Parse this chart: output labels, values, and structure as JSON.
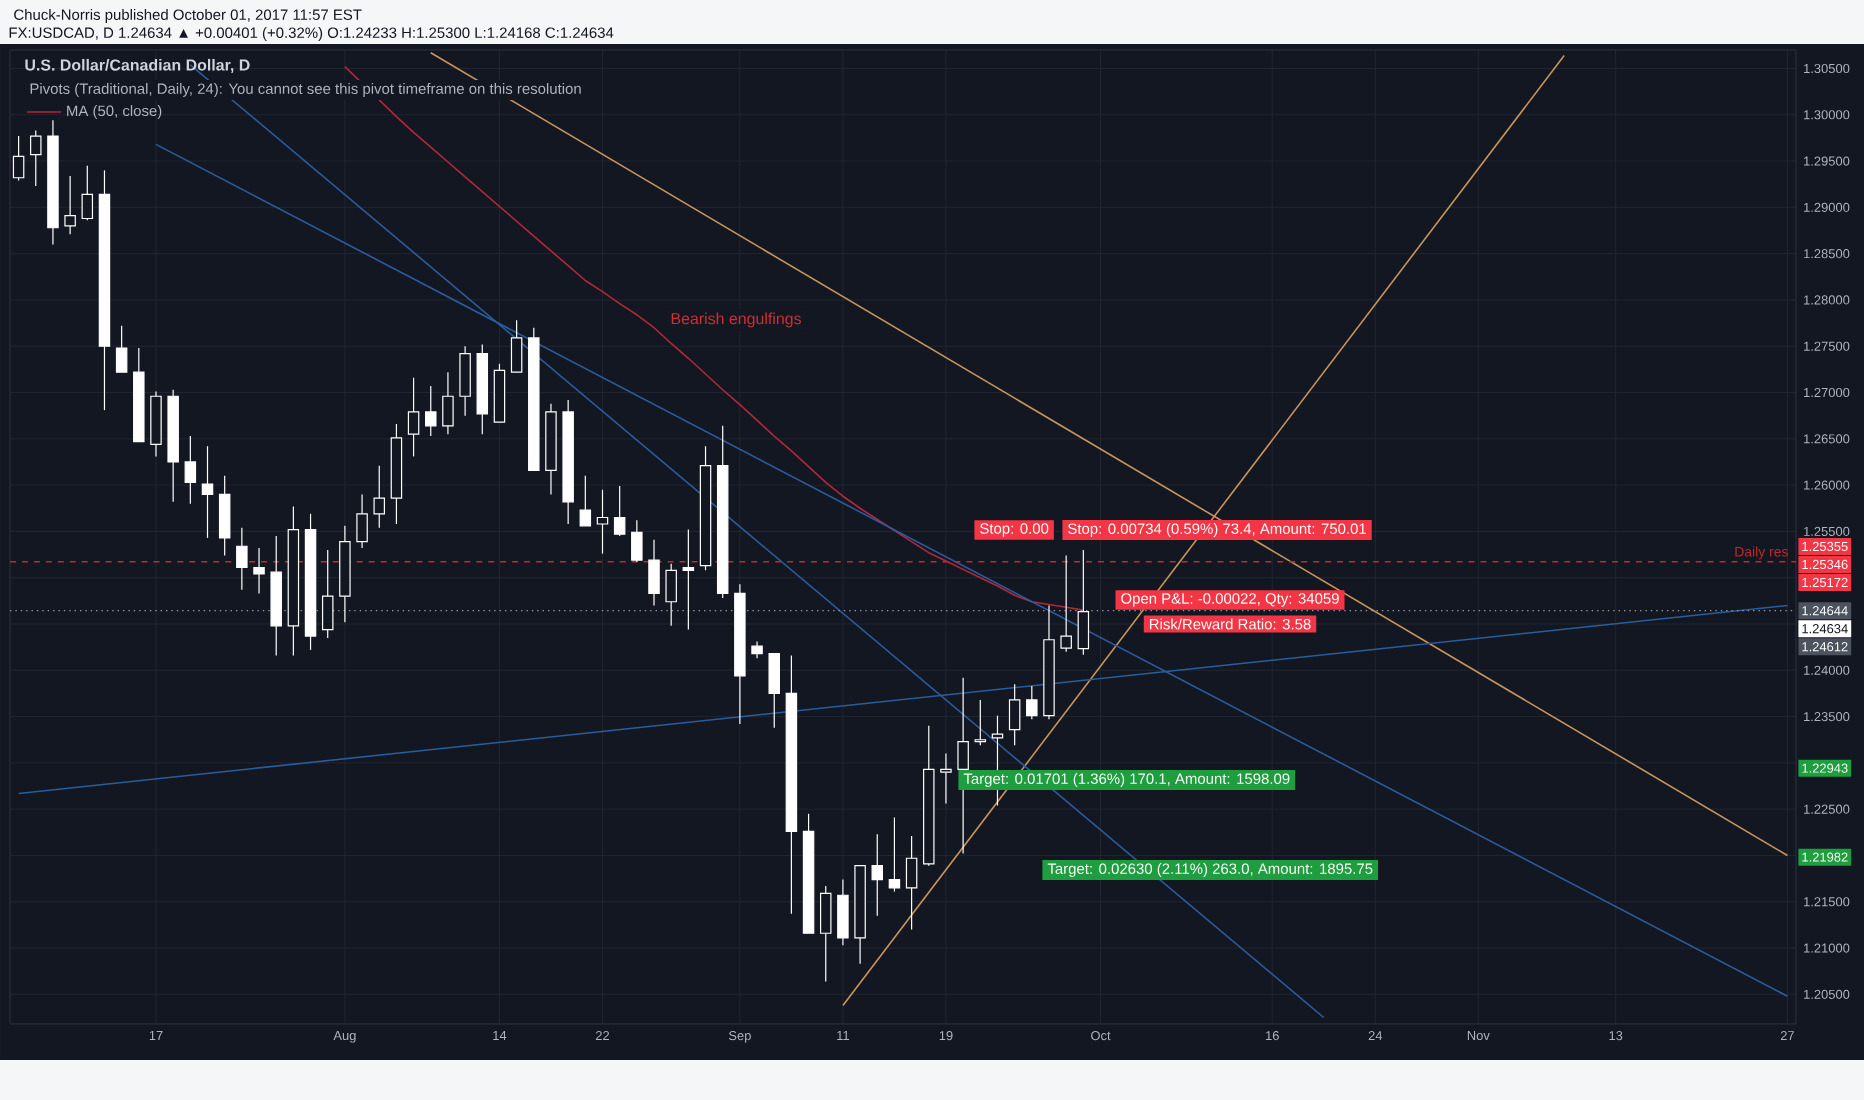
{
  "chart_data": {
    "type": "candlestick",
    "title": "U.S. Dollar/Canadian Dollar, D",
    "subtitle": "FX:USDCAD, D 1.24634 ▲ +0.00401 (+0.32%) O:1.24233 H:1.25300 L:1.24168 C:1.24634",
    "categories": [
      null,
      null,
      null,
      null,
      null,
      null,
      null,
      null,
      "17",
      null,
      null,
      null,
      null,
      null,
      null,
      null,
      null,
      null,
      null,
      "Aug",
      null,
      null,
      null,
      null,
      null,
      null,
      null,
      null,
      "14",
      null,
      null,
      null,
      null,
      null,
      "22",
      null,
      null,
      null,
      null,
      null,
      null,
      null,
      "Sep",
      null,
      null,
      null,
      null,
      null,
      "11",
      null,
      null,
      null,
      null,
      null,
      "19",
      null,
      null,
      null,
      null,
      null,
      null,
      null,
      null,
      "Oct",
      null,
      null,
      null,
      null,
      null,
      null,
      null,
      null,
      null,
      "16",
      null,
      null,
      null,
      null,
      null,
      "24",
      null,
      null,
      null,
      null,
      null,
      "Nov",
      null,
      null,
      null,
      null,
      null,
      null,
      null,
      "13",
      null,
      null,
      null,
      null,
      null,
      null,
      null,
      null,
      null,
      "27"
    ],
    "series": [
      {
        "color": "#ffffff",
        "ohlc": [
          [
            1.2932,
            1.2977,
            1.2929,
            1.2955
          ],
          [
            1.2957,
            1.2983,
            1.2923,
            1.2977
          ],
          [
            1.2977,
            1.2994,
            1.286,
            1.2878
          ],
          [
            1.288,
            1.2934,
            1.2871,
            1.2891
          ],
          [
            1.2888,
            1.2945,
            1.2886,
            1.2914
          ],
          [
            1.2914,
            1.294,
            1.2681,
            1.275
          ],
          [
            1.2748,
            1.2772,
            1.2722,
            1.2722
          ],
          [
            1.2722,
            1.2748,
            1.2647,
            1.2647
          ],
          [
            1.2644,
            1.2701,
            1.2631,
            1.2696
          ],
          [
            1.2696,
            1.2703,
            1.2582,
            1.2625
          ],
          [
            1.2625,
            1.2653,
            1.258,
            1.2603
          ],
          [
            1.2601,
            1.2642,
            1.2543,
            1.259
          ],
          [
            1.259,
            1.261,
            1.2524,
            1.2543
          ],
          [
            1.2534,
            1.2554,
            1.2487,
            1.2511
          ],
          [
            1.2511,
            1.2532,
            1.2483,
            1.2504
          ],
          [
            1.2506,
            1.2545,
            1.2416,
            1.2448
          ],
          [
            1.2448,
            1.2577,
            1.2416,
            1.2552
          ],
          [
            1.2552,
            1.2569,
            1.2422,
            1.2437
          ],
          [
            1.2444,
            1.253,
            1.2435,
            1.248
          ],
          [
            1.248,
            1.2556,
            1.2452,
            1.2539
          ],
          [
            1.2539,
            1.259,
            1.2532,
            1.2569
          ],
          [
            1.2569,
            1.2621,
            1.2554,
            1.2586
          ],
          [
            1.2586,
            1.2666,
            1.2558,
            1.2651
          ],
          [
            1.2655,
            1.2716,
            1.2631,
            1.2679
          ],
          [
            1.2679,
            1.2707,
            1.2653,
            1.2664
          ],
          [
            1.2664,
            1.2722,
            1.2655,
            1.2696
          ],
          [
            1.2696,
            1.275,
            1.2675,
            1.2742
          ],
          [
            1.2742,
            1.2752,
            1.2655,
            1.2677
          ],
          [
            1.2668,
            1.2731,
            1.2668,
            1.2724
          ],
          [
            1.2722,
            1.2778,
            1.2722,
            1.2759
          ],
          [
            1.2759,
            1.277,
            1.2616,
            1.2616
          ],
          [
            1.2616,
            1.2688,
            1.259,
            1.2679
          ],
          [
            1.2679,
            1.2692,
            1.2558,
            1.2582
          ],
          [
            1.2573,
            1.261,
            1.2556,
            1.2556
          ],
          [
            1.2558,
            1.2595,
            1.2526,
            1.2565
          ],
          [
            1.2565,
            1.2599,
            1.2545,
            1.2547
          ],
          [
            1.2549,
            1.2562,
            1.2517,
            1.2519
          ],
          [
            1.2519,
            1.2541,
            1.247,
            1.2483
          ],
          [
            1.2474,
            1.2515,
            1.2448,
            1.2508
          ],
          [
            1.2511,
            1.2552,
            1.2444,
            1.2508
          ],
          [
            1.2513,
            1.2642,
            1.2508,
            1.2621
          ],
          [
            1.2621,
            1.2664,
            1.2478,
            1.2483
          ],
          [
            1.2483,
            1.2493,
            1.2342,
            1.2394
          ],
          [
            1.2426,
            1.2431,
            1.2413,
            1.2418
          ],
          [
            1.2418,
            1.2418,
            1.2338,
            1.2375
          ],
          [
            1.2375,
            1.2416,
            1.2137,
            1.2226
          ],
          [
            1.2226,
            1.2245,
            1.2116,
            1.2116
          ],
          [
            1.2116,
            1.2167,
            1.2064,
            1.2159
          ],
          [
            1.2157,
            1.2174,
            1.2103,
            1.2111
          ],
          [
            1.2111,
            1.2189,
            1.2083,
            1.2189
          ],
          [
            1.2189,
            1.2223,
            1.2135,
            1.2174
          ],
          [
            1.2174,
            1.2241,
            1.2161,
            1.2165
          ],
          [
            1.2165,
            1.2221,
            1.212,
            1.2197
          ],
          [
            1.2191,
            1.234,
            1.2189,
            1.2293
          ],
          [
            1.229,
            1.231,
            1.2256,
            1.2293
          ],
          [
            1.2293,
            1.2392,
            1.2202,
            1.2323
          ],
          [
            1.2323,
            1.2368,
            1.2319,
            1.2325
          ],
          [
            1.2327,
            1.2351,
            1.2254,
            1.2331
          ],
          [
            1.2336,
            1.2385,
            1.2319,
            1.2368
          ],
          [
            1.2368,
            1.2383,
            1.2347,
            1.2351
          ],
          [
            1.2351,
            1.247,
            1.2347,
            1.2433
          ],
          [
            1.2424,
            1.2524,
            1.242,
            1.2437
          ],
          [
            1.24233,
            1.253,
            1.24168,
            1.24634
          ],
          null,
          null,
          null,
          null,
          null,
          null,
          null,
          null,
          null,
          null,
          null,
          null,
          null,
          null,
          null,
          null,
          null,
          null,
          null,
          null,
          null,
          null,
          null,
          null,
          null,
          null,
          null,
          null,
          null,
          null,
          null,
          null,
          null,
          null,
          null,
          null,
          null,
          null,
          null,
          null,
          null
        ]
      },
      {
        "type": "line",
        "name": "MA (50, close)",
        "color": "#b2283a",
        "values": [
          null,
          null,
          null,
          null,
          null,
          null,
          null,
          null,
          null,
          null,
          null,
          null,
          null,
          null,
          null,
          null,
          null,
          null,
          null,
          1.3052,
          1.3034,
          1.3016,
          1.2998,
          1.2981,
          1.2965,
          1.2949,
          1.2933,
          1.2917,
          1.2901,
          1.2885,
          1.2869,
          1.2853,
          1.2837,
          1.2821,
          1.2809,
          1.2796,
          1.2784,
          1.277,
          1.2753,
          1.2737,
          1.272,
          1.2703,
          1.2687,
          1.267,
          1.2653,
          1.2637,
          1.262,
          1.2603,
          1.2588,
          1.2575,
          1.2563,
          1.2551,
          1.2539,
          1.2527,
          1.2518,
          1.2509,
          1.25,
          1.2491,
          1.2481,
          1.2474,
          1.2471,
          1.2468,
          1.2465,
          null,
          null,
          null,
          null,
          null,
          null,
          null,
          null,
          null,
          null,
          null,
          null,
          null,
          null,
          null,
          null,
          null,
          null,
          null,
          null,
          null,
          null,
          null,
          null,
          null,
          null,
          null,
          null,
          null,
          null,
          null,
          null,
          null,
          null,
          null,
          null,
          null,
          null,
          null,
          null,
          null
        ]
      },
      {
        "type": "line",
        "color": "#c9955a",
        "values": [
          null,
          null,
          null,
          null,
          null,
          null,
          null,
          null,
          null,
          null,
          null,
          null,
          null,
          null,
          null,
          null,
          null,
          null,
          null,
          null,
          null,
          null,
          null,
          null,
          1.3067,
          null,
          null,
          null,
          null,
          null,
          null,
          null,
          null,
          null,
          null,
          null,
          null,
          null,
          null,
          null,
          null,
          null,
          null,
          null,
          null,
          null,
          null,
          null,
          null,
          null,
          null,
          null,
          null,
          null,
          null,
          null,
          null,
          null,
          null,
          null,
          null,
          null,
          null,
          null,
          null,
          null,
          null,
          null,
          null,
          null,
          null,
          null,
          null,
          null,
          null,
          null,
          null,
          null,
          null,
          null,
          null,
          null,
          null,
          null,
          null,
          null,
          null,
          null,
          null,
          null,
          null,
          null,
          null,
          null,
          null,
          null,
          null,
          null,
          null,
          null,
          null,
          null,
          null,
          1.22
        ]
      },
      {
        "type": "line",
        "color": "#c9955a",
        "values": [
          null,
          null,
          null,
          null,
          null,
          null,
          null,
          null,
          null,
          null,
          null,
          null,
          null,
          null,
          null,
          null,
          null,
          null,
          null,
          null,
          null,
          null,
          null,
          null,
          null,
          null,
          null,
          null,
          null,
          null,
          null,
          null,
          null,
          null,
          null,
          null,
          null,
          null,
          null,
          null,
          null,
          null,
          null,
          null,
          null,
          null,
          null,
          null,
          1.2038,
          null,
          null,
          null,
          null,
          null,
          null,
          null,
          null,
          null,
          null,
          null,
          null,
          null,
          null,
          null,
          null,
          null,
          null,
          null,
          null,
          null,
          null,
          null,
          null,
          null,
          null,
          null,
          null,
          null,
          null,
          null,
          null,
          null,
          null,
          null,
          null,
          null,
          null,
          null,
          null,
          null,
          1.3064,
          null,
          null,
          null,
          null,
          null,
          null,
          null,
          null,
          null,
          null,
          null,
          null,
          null
        ]
      },
      {
        "type": "line",
        "color": "#2a5d9f",
        "values": [
          null,
          null,
          null,
          null,
          null,
          null,
          null,
          null,
          1.2968,
          null,
          null,
          null,
          null,
          null,
          null,
          null,
          null,
          null,
          null,
          null,
          null,
          null,
          null,
          null,
          null,
          null,
          null,
          null,
          null,
          null,
          null,
          null,
          null,
          null,
          null,
          null,
          null,
          null,
          null,
          null,
          null,
          null,
          null,
          null,
          null,
          null,
          null,
          null,
          null,
          null,
          null,
          null,
          null,
          null,
          null,
          null,
          null,
          null,
          null,
          null,
          null,
          null,
          null,
          null,
          null,
          null,
          null,
          null,
          null,
          null,
          null,
          null,
          null,
          null,
          null,
          null,
          null,
          null,
          null,
          null,
          null,
          null,
          null,
          null,
          null,
          null,
          null,
          null,
          null,
          null,
          null,
          null,
          null,
          null,
          null,
          null,
          null,
          null,
          null,
          null,
          null,
          null,
          null,
          1.2048
        ]
      },
      {
        "type": "line",
        "color": "#2a5d9f",
        "values": [
          null,
          null,
          null,
          null,
          null,
          null,
          null,
          null,
          null,
          null,
          1.3054,
          null,
          null,
          null,
          null,
          null,
          null,
          null,
          null,
          null,
          null,
          null,
          null,
          null,
          null,
          null,
          null,
          null,
          null,
          null,
          null,
          null,
          null,
          null,
          null,
          null,
          null,
          null,
          null,
          null,
          null,
          null,
          null,
          null,
          null,
          null,
          null,
          null,
          null,
          null,
          null,
          null,
          null,
          null,
          null,
          null,
          null,
          null,
          null,
          null,
          null,
          null,
          null,
          null,
          null,
          null,
          null,
          null,
          null,
          null,
          null,
          null,
          null,
          null,
          null,
          null,
          1.2025,
          null,
          null,
          null,
          null,
          null,
          null,
          null,
          null,
          null,
          null,
          null,
          null,
          null,
          null,
          null,
          null,
          null,
          null,
          null,
          null,
          null,
          null,
          null,
          null,
          null,
          null,
          null
        ]
      },
      {
        "type": "line",
        "color": "#2a5d9f",
        "values": [
          1.2267,
          null,
          null,
          null,
          null,
          null,
          null,
          null,
          null,
          null,
          null,
          null,
          null,
          null,
          null,
          null,
          null,
          null,
          null,
          null,
          null,
          null,
          null,
          null,
          null,
          null,
          null,
          null,
          null,
          null,
          null,
          null,
          null,
          null,
          null,
          null,
          null,
          null,
          null,
          null,
          null,
          null,
          null,
          null,
          null,
          null,
          null,
          null,
          null,
          null,
          null,
          null,
          null,
          null,
          null,
          null,
          null,
          null,
          null,
          null,
          null,
          null,
          null,
          null,
          null,
          null,
          null,
          null,
          null,
          null,
          null,
          null,
          null,
          null,
          null,
          null,
          null,
          null,
          null,
          null,
          null,
          null,
          null,
          null,
          null,
          null,
          null,
          null,
          null,
          null,
          null,
          null,
          null,
          null,
          null,
          null,
          null,
          null,
          null,
          null,
          null,
          null,
          null,
          1.247
        ]
      }
    ],
    "ylim": [
      1.2018,
      1.307
    ],
    "yticks": [
      {
        "value": 1.205,
        "label": "1.20500"
      },
      {
        "value": 1.21,
        "label": "1.21000"
      },
      {
        "value": 1.215,
        "label": "1.21500"
      },
      {
        "value": 1.22,
        "label": null
      },
      {
        "value": 1.225,
        "label": "1.22500"
      },
      {
        "value": 1.23,
        "label": null
      },
      {
        "value": 1.235,
        "label": "1.23500"
      },
      {
        "value": 1.24,
        "label": "1.24000"
      },
      {
        "value": 1.245,
        "label": null
      },
      {
        "value": 1.25,
        "label": null
      },
      {
        "value": 1.255,
        "label": "1.25500"
      },
      {
        "value": 1.26,
        "label": "1.26000"
      },
      {
        "value": 1.265,
        "label": "1.26500"
      },
      {
        "value": 1.27,
        "label": "1.27000"
      },
      {
        "value": 1.275,
        "label": "1.27500"
      },
      {
        "value": 1.28,
        "label": "1.28000"
      },
      {
        "value": 1.285,
        "label": "1.28500"
      },
      {
        "value": 1.29,
        "label": "1.29000"
      },
      {
        "value": 1.295,
        "label": "1.29500"
      },
      {
        "value": 1.3,
        "label": "1.30000"
      },
      {
        "value": 1.305,
        "label": "1.30500"
      }
    ],
    "grid": true,
    "legend": "top left",
    "ref_lines": [
      {
        "axis": "y",
        "value": 1.25172,
        "label": "Daily res",
        "color": "#c62828",
        "line_style": "dashed"
      },
      {
        "axis": "y",
        "value": 1.24644,
        "color": "#9598a1",
        "line_style": "dotted"
      }
    ],
    "annotations": [
      "Chuck-Norris published October 01, 2017 11:57 EST",
      "Pivots (Traditional, Daily, 24): You cannot see this pivot timeframe on this resolution",
      "Bearish engulfings",
      "Stop: 0.00",
      "Stop: 0.00734 (0.59%) 73.4, Amount: 750.01",
      "Open P&L: -0.00022, Qty: 34059",
      "Risk/Reward Ratio: 3.58",
      "Target: 0.01701 (1.36%) 170.1, Amount: 1598.09",
      "Target: 0.02630 (2.11%) 263.0, Amount: 1895.75",
      {
        "text": "1.25355",
        "y": 1.25355
      },
      "1.25346",
      {
        "text": "1.25172",
        "y": 1.25172
      },
      {
        "text": "1.24644",
        "y": 1.24644
      },
      "1.24634",
      "1.24612",
      {
        "text": "1.22943",
        "y": 1.22943
      },
      {
        "text": "1.21982",
        "y": 1.21982
      }
    ]
  }
}
